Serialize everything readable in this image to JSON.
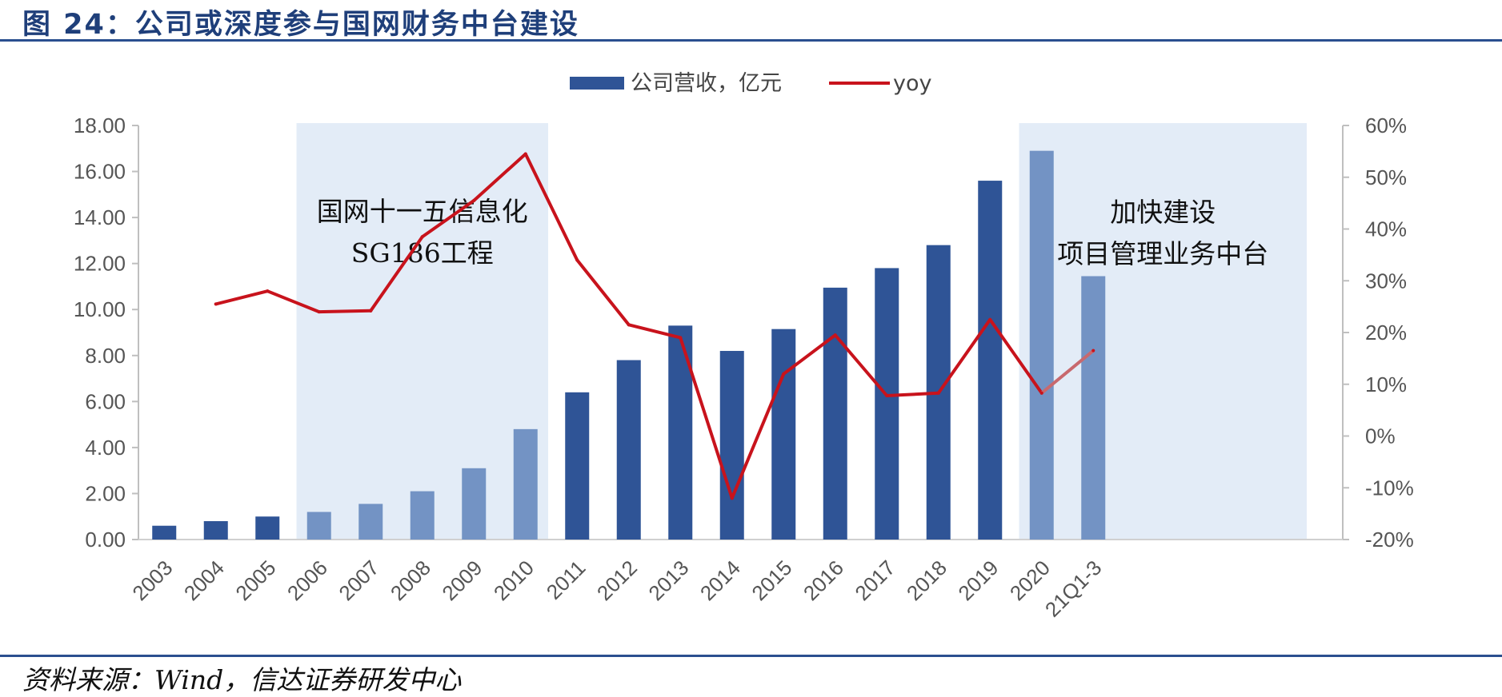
{
  "figure": {
    "title": "图 24：公司或深度参与国网财务中台建设",
    "source": "资料来源：Wind，信达证券研发中心"
  },
  "chart_data": {
    "type": "bar+line",
    "categories": [
      "2003",
      "2004",
      "2005",
      "2006",
      "2007",
      "2008",
      "2009",
      "2010",
      "2011",
      "2012",
      "2013",
      "2014",
      "2015",
      "2016",
      "2017",
      "2018",
      "2019",
      "2020",
      "21Q1-3"
    ],
    "series": [
      {
        "name": "公司营收，亿元",
        "type": "bar",
        "axis": "left",
        "values": [
          0.6,
          0.8,
          1.0,
          1.2,
          1.55,
          2.1,
          3.1,
          4.8,
          6.4,
          7.8,
          9.3,
          8.2,
          9.15,
          10.95,
          11.8,
          12.8,
          15.6,
          16.9,
          11.45
        ]
      },
      {
        "name": "yoy",
        "type": "line",
        "axis": "right",
        "values": [
          null,
          25.5,
          28.0,
          24.0,
          24.2,
          38.5,
          45.5,
          54.5,
          34.0,
          21.5,
          19.0,
          -12.0,
          12.0,
          19.5,
          7.8,
          8.3,
          22.5,
          8.3,
          16.5
        ]
      }
    ],
    "y_left": {
      "ylim": [
        0,
        18
      ],
      "ticks": [
        "0.00",
        "2.00",
        "4.00",
        "6.00",
        "8.00",
        "10.00",
        "12.00",
        "14.00",
        "16.00",
        "18.00"
      ]
    },
    "y_right": {
      "ylim": [
        -20,
        60
      ],
      "ticks": [
        "-20%",
        "-10%",
        "0%",
        "10%",
        "20%",
        "30%",
        "40%",
        "50%",
        "60%"
      ]
    },
    "highlights": [
      {
        "from": "2006",
        "to": "2010",
        "label_lines": [
          "国网十一五信息化",
          "SG186工程"
        ]
      },
      {
        "from": "2020",
        "to": "21Q1-3",
        "label_lines": [
          "加快建设",
          "项目管理业务中台"
        ]
      }
    ],
    "legend_position": "top-center",
    "colors": {
      "bar": "#2f5496",
      "bar_highlight": "#7393c4",
      "line": "#c8131c",
      "line_highlight": "#c8696e",
      "band": "#e3ecf7"
    }
  }
}
